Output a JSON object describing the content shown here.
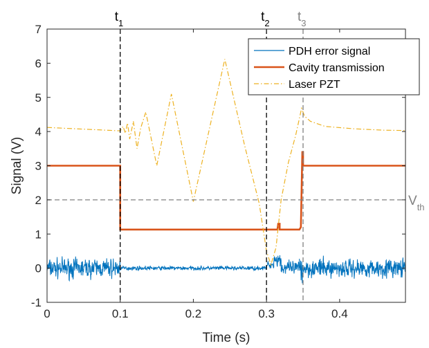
{
  "chart_data": {
    "type": "line",
    "title": "",
    "xlabel": "Time (s)",
    "ylabel": "Signal (V)",
    "xlim": [
      0,
      0.49
    ],
    "ylim": [
      -1,
      7
    ],
    "xticks": [
      0,
      0.1,
      0.2,
      0.3,
      0.4
    ],
    "xtick_labels": [
      "0",
      "0.1",
      "0.2",
      "0.3",
      "0.4"
    ],
    "yticks": [
      -1,
      0,
      1,
      2,
      3,
      4,
      5,
      6,
      7
    ],
    "ytick_labels": [
      "-1",
      "0",
      "1",
      "2",
      "3",
      "4",
      "5",
      "6",
      "7"
    ],
    "grid": false,
    "legend_position": "top-right",
    "colors": {
      "pdh": "#0072BD",
      "cavity": "#D95319",
      "laser": "#EDB120",
      "marker_black": "#000000",
      "marker_gray": "#808080",
      "vth_line": "#808080"
    },
    "markers": [
      {
        "label": "t",
        "sub": "1",
        "x": 0.1,
        "style": "black"
      },
      {
        "label": "t",
        "sub": "2",
        "x": 0.3,
        "style": "black"
      },
      {
        "label": "t",
        "sub": "3",
        "x": 0.35,
        "style": "gray"
      }
    ],
    "threshold": {
      "label": "V",
      "sub": "th",
      "y": 2
    },
    "series": [
      {
        "name": "PDH error signal",
        "style": "solid-noise",
        "segments": [
          {
            "x0": 0,
            "x1": 0.1,
            "center": 0,
            "amp": 0.42
          },
          {
            "x0": 0.1,
            "x1": 0.3,
            "center": 0,
            "amp": 0.09
          },
          {
            "x0": 0.3,
            "x1": 0.31,
            "center": 0.1,
            "amp": 0.15
          },
          {
            "x0": 0.31,
            "x1": 0.32,
            "center": 0.25,
            "amp": 0.3
          },
          {
            "x0": 0.32,
            "x1": 0.345,
            "center": 0,
            "amp": 0.3
          },
          {
            "x0": 0.345,
            "x1": 0.349,
            "center": 0,
            "amp": 1.0
          },
          {
            "x0": 0.349,
            "x1": 0.49,
            "center": 0,
            "amp": 0.4
          }
        ]
      },
      {
        "name": "Cavity transmission",
        "style": "solid",
        "x": [
          0,
          0.1,
          0.1,
          0.315,
          0.316,
          0.318,
          0.318,
          0.345,
          0.347,
          0.347,
          0.349,
          0.35,
          0.35,
          0.49
        ],
        "y": [
          3.0,
          3.0,
          1.13,
          1.13,
          1.3,
          1.3,
          1.13,
          1.13,
          1.2,
          1.2,
          3.4,
          3.4,
          3.0,
          3.0
        ]
      },
      {
        "name": "Laser PZT",
        "style": "dashdot",
        "x": [
          0,
          0.05,
          0.1,
          0.104,
          0.107,
          0.11,
          0.113,
          0.118,
          0.123,
          0.128,
          0.135,
          0.15,
          0.17,
          0.2,
          0.243,
          0.27,
          0.29,
          0.3,
          0.306,
          0.313,
          0.32,
          0.33,
          0.34,
          0.348,
          0.352,
          0.36,
          0.38,
          0.42,
          0.46,
          0.49
        ],
        "y": [
          4.12,
          4.07,
          4.02,
          4.15,
          3.95,
          4.25,
          3.78,
          4.3,
          3.5,
          4.1,
          4.57,
          3.0,
          5.1,
          1.95,
          6.12,
          3.6,
          1.9,
          0.5,
          0.1,
          0.6,
          2.0,
          3.1,
          3.9,
          4.68,
          4.45,
          4.3,
          4.15,
          4.08,
          4.04,
          4.03
        ]
      }
    ]
  }
}
